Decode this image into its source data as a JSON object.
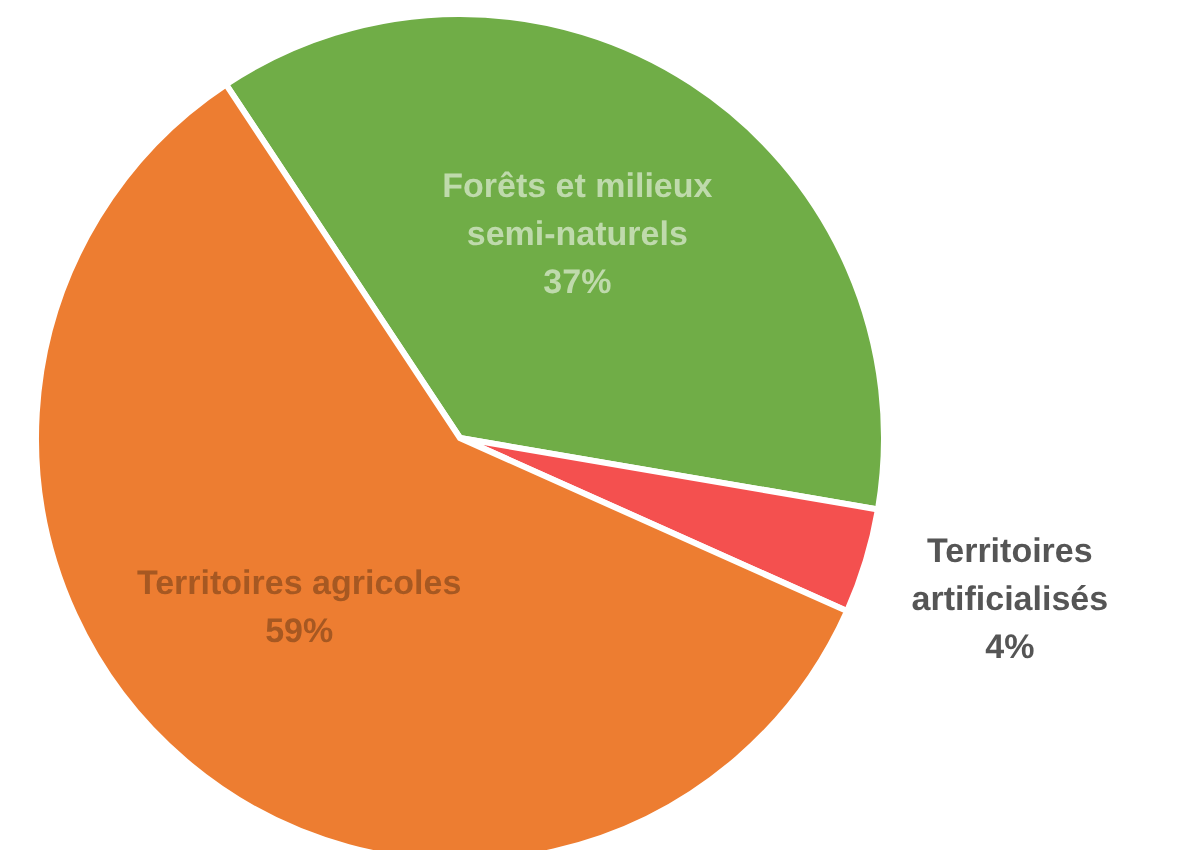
{
  "chart_data": {
    "type": "pie",
    "categories": [
      "Forêts et milieux semi-naturels",
      "Territoires artificialisés",
      "Territoires agricoles"
    ],
    "values": [
      37,
      4,
      59
    ],
    "value_labels": [
      "37%",
      "4%",
      "59%"
    ],
    "colors": [
      "#70ad47",
      "#f4504f",
      "#ed7d31"
    ]
  }
}
